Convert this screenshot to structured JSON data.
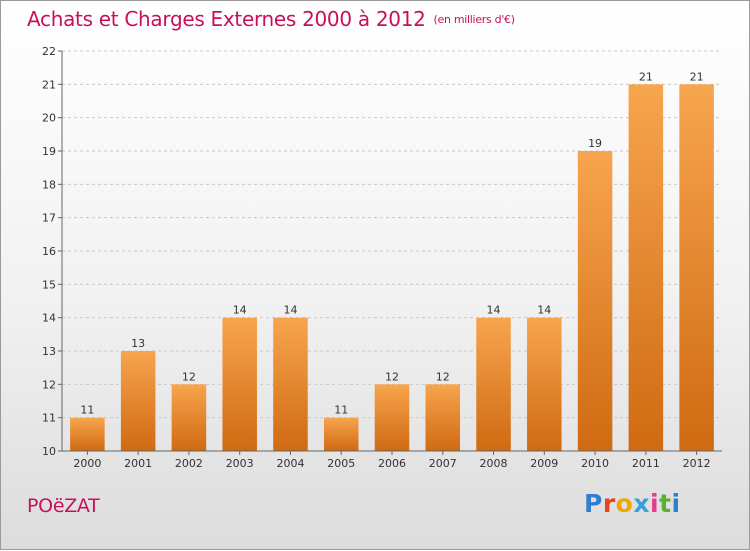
{
  "header": {
    "title": "Achats et Charges Externes 2000 à 2012",
    "unit": "(en milliers d'€)"
  },
  "footer": {
    "place": "POëZAT",
    "brand_letters": [
      "P",
      "r",
      "o",
      "x",
      "i",
      "t",
      "i"
    ],
    "brand_colors": [
      "#2f7fd0",
      "#e8431f",
      "#f0a800",
      "#3aa0d8",
      "#e23d8b",
      "#5bb031",
      "#2f7fd0"
    ]
  },
  "colors": {
    "bar_top": "#f7a54e",
    "bar_bottom": "#cf6a12",
    "grid": "#c8c8c8",
    "axis": "#666666",
    "title": "#c8105a"
  },
  "chart_data": {
    "type": "bar",
    "title": "Achats et Charges Externes 2000 à 2012",
    "subtitle": "(en milliers d'€)",
    "xlabel": "",
    "ylabel": "",
    "categories": [
      "2000",
      "2001",
      "2002",
      "2003",
      "2004",
      "2005",
      "2006",
      "2007",
      "2008",
      "2009",
      "2010",
      "2011",
      "2012"
    ],
    "values": [
      11,
      13,
      12,
      14,
      14,
      11,
      12,
      12,
      14,
      14,
      19,
      21,
      21
    ],
    "ylim": [
      10,
      22
    ],
    "yticks": [
      10,
      11,
      12,
      13,
      14,
      15,
      16,
      17,
      18,
      19,
      20,
      21,
      22
    ],
    "grid": "horizontal-dashed",
    "legend": "none"
  }
}
